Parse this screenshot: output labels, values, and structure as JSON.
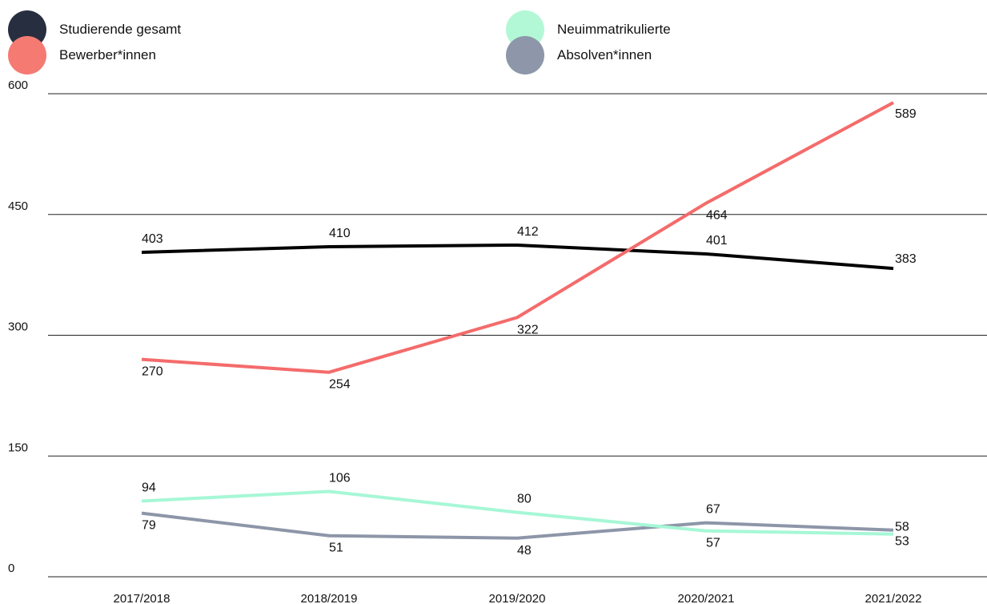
{
  "chart_data": {
    "type": "line",
    "categories": [
      "2017/2018",
      "2018/2019",
      "2019/2020",
      "2020/2021",
      "2021/2022"
    ],
    "y_ticks": [
      0,
      150,
      300,
      450,
      600
    ],
    "ylim": [
      0,
      600
    ],
    "grid": "horizontal",
    "legend_position": "top",
    "series": [
      {
        "key": "studierende",
        "name": "Studierende gesamt",
        "color": "#000000",
        "dot_color": "#272e40",
        "values": [
          403,
          410,
          412,
          401,
          383
        ],
        "label_side": [
          "above",
          "above",
          "above",
          "above",
          "right"
        ]
      },
      {
        "key": "bewerber",
        "name": "Bewerber*innen",
        "color": "#f46b6b",
        "dot_color": "#f47a72",
        "values": [
          270,
          254,
          322,
          464,
          589
        ],
        "label_side": [
          "below",
          "below",
          "below",
          "below",
          "below"
        ]
      },
      {
        "key": "neuimma",
        "name": "Neuimmatrikulierte",
        "color": "#a6f7d6",
        "dot_color": "#b3f8d6",
        "values": [
          94,
          106,
          80,
          57,
          53
        ],
        "label_side": [
          "above",
          "above",
          "above",
          "below",
          "right"
        ]
      },
      {
        "key": "absolv",
        "name": "Absolven*innen",
        "color": "#8d96a8",
        "dot_color": "#8d97a9",
        "values": [
          79,
          51,
          48,
          67,
          58
        ],
        "label_side": [
          "below",
          "below",
          "below",
          "above",
          "right"
        ]
      }
    ]
  }
}
